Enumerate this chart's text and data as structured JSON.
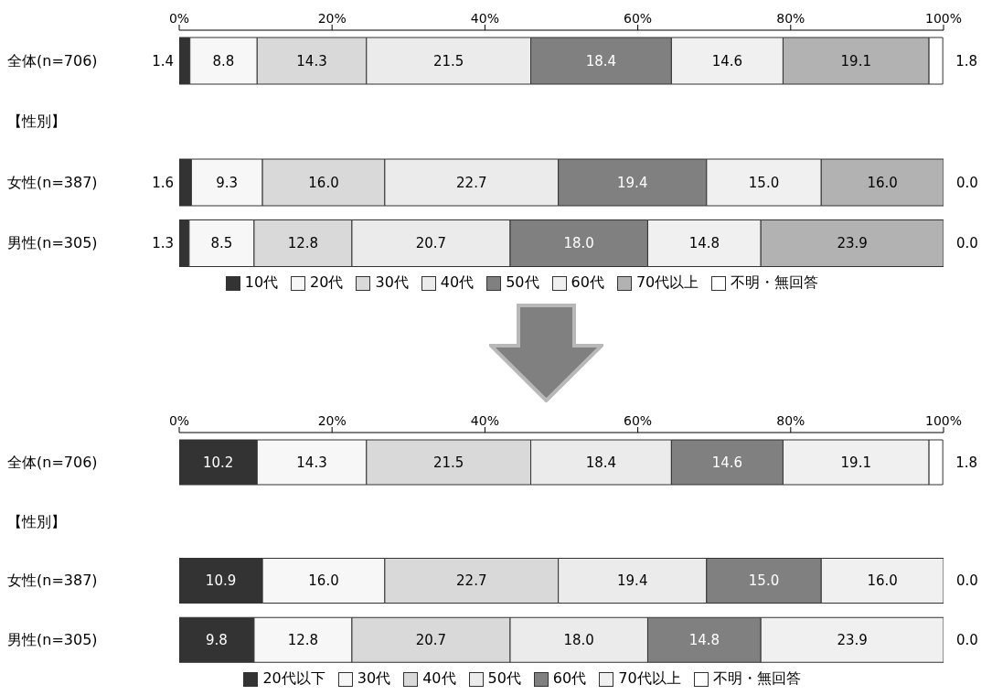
{
  "chart_data": [
    {
      "type": "bar",
      "orientation": "horizontal",
      "stacked": true,
      "categories": [
        "全体(n=706)",
        "【性別】",
        "女性(n=387)",
        "男性(n=305)"
      ],
      "xlim": [
        0,
        100
      ],
      "xticks": [
        {
          "value": 0,
          "label": "0%"
        },
        {
          "value": 20,
          "label": "20%"
        },
        {
          "value": 40,
          "label": "40%"
        },
        {
          "value": 60,
          "label": "60%"
        },
        {
          "value": 80,
          "label": "80%"
        },
        {
          "value": 100,
          "label": "100%"
        }
      ],
      "legend": "bottom",
      "series": [
        {
          "name": "10代",
          "color": "#333333",
          "values": [
            1.4,
            null,
            1.6,
            1.3
          ],
          "value_labels": [
            "1.4",
            null,
            "1.6",
            "1.3"
          ]
        },
        {
          "name": "20代",
          "color": "#f7f7f7",
          "values": [
            8.8,
            null,
            9.3,
            8.5
          ],
          "value_labels": [
            "8.8",
            null,
            "9.3",
            "8.5"
          ]
        },
        {
          "name": "30代",
          "color": "#d9d9d9",
          "values": [
            14.3,
            null,
            16.0,
            12.8
          ],
          "value_labels": [
            "14.3",
            null,
            "16.0",
            "12.8"
          ]
        },
        {
          "name": "40代",
          "color": "#ebebeb",
          "values": [
            21.5,
            null,
            22.7,
            20.7
          ],
          "value_labels": [
            "21.5",
            null,
            "22.7",
            "20.7"
          ]
        },
        {
          "name": "50代",
          "color": "#808080",
          "values": [
            18.4,
            null,
            19.4,
            18.0
          ],
          "value_labels": [
            "18.4",
            null,
            "19.4",
            "18.0"
          ]
        },
        {
          "name": "60代",
          "color": "#f0f0f0",
          "values": [
            14.6,
            null,
            15.0,
            14.8
          ],
          "value_labels": [
            "14.6",
            null,
            "15.0",
            "14.8"
          ]
        },
        {
          "name": "70代以上",
          "color": "#b2b2b2",
          "values": [
            19.1,
            null,
            16.0,
            23.9
          ],
          "value_labels": [
            "19.1",
            null,
            "16.0",
            "23.9"
          ]
        },
        {
          "name": "不明・無回答",
          "color": "#ffffff",
          "values": [
            1.8,
            null,
            0.0,
            0.0
          ],
          "value_labels": [
            "1.8",
            null,
            "0.0",
            "0.0"
          ]
        }
      ]
    },
    {
      "type": "bar",
      "orientation": "horizontal",
      "stacked": true,
      "categories": [
        "全体(n=706)",
        "【性別】",
        "女性(n=387)",
        "男性(n=305)"
      ],
      "xlim": [
        0,
        100
      ],
      "xticks": [
        {
          "value": 0,
          "label": "0%"
        },
        {
          "value": 20,
          "label": "20%"
        },
        {
          "value": 40,
          "label": "40%"
        },
        {
          "value": 60,
          "label": "60%"
        },
        {
          "value": 80,
          "label": "80%"
        },
        {
          "value": 100,
          "label": "100%"
        }
      ],
      "legend": "bottom",
      "series": [
        {
          "name": "20代以下",
          "color": "#333333",
          "values": [
            10.2,
            null,
            10.9,
            9.8
          ],
          "value_labels": [
            "10.2",
            null,
            "10.9",
            "9.8"
          ]
        },
        {
          "name": "30代",
          "color": "#f7f7f7",
          "values": [
            14.3,
            null,
            16.0,
            12.8
          ],
          "value_labels": [
            "14.3",
            null,
            "16.0",
            "12.8"
          ]
        },
        {
          "name": "40代",
          "color": "#d9d9d9",
          "values": [
            21.5,
            null,
            22.7,
            20.7
          ],
          "value_labels": [
            "21.5",
            null,
            "22.7",
            "20.7"
          ]
        },
        {
          "name": "50代",
          "color": "#ebebeb",
          "values": [
            18.4,
            null,
            19.4,
            18.0
          ],
          "value_labels": [
            "18.4",
            null,
            "19.4",
            "18.0"
          ]
        },
        {
          "name": "60代",
          "color": "#808080",
          "values": [
            14.6,
            null,
            15.0,
            14.8
          ],
          "value_labels": [
            "14.6",
            null,
            "15.0",
            "14.8"
          ]
        },
        {
          "name": "70代以上",
          "color": "#f0f0f0",
          "values": [
            19.1,
            null,
            16.0,
            23.9
          ],
          "value_labels": [
            "19.1",
            null,
            "16.0",
            "23.9"
          ]
        },
        {
          "name": "不明・無回答",
          "color": "#ffffff",
          "values": [
            1.8,
            null,
            0.0,
            0.0
          ],
          "value_labels": [
            "1.8",
            null,
            "0.0",
            "0.0"
          ]
        }
      ]
    }
  ]
}
